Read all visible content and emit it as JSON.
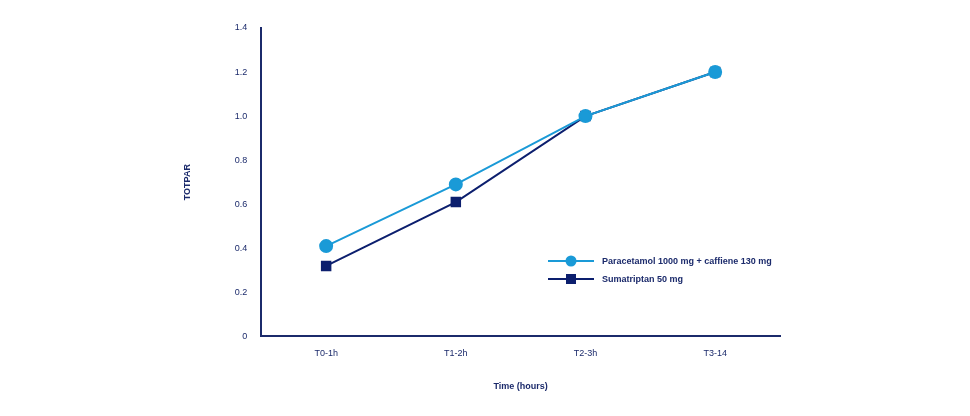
{
  "chart_data": {
    "type": "line",
    "x_label": "Time (hours)",
    "y_label": "TOTPAR",
    "categories": [
      "T0-1h",
      "T1-2h",
      "T2-3h",
      "T3-14"
    ],
    "series": [
      {
        "name": "Paracetamol 1000 mg + caffiene 130 mg",
        "color": "#1a9ad7",
        "marker": "circle",
        "line_style": "solid",
        "values": [
          0.41,
          0.69,
          1.0,
          1.2
        ]
      },
      {
        "name": "Sumatriptan 50 mg",
        "color": "#0c1f6e",
        "marker": "square",
        "line_style": "solid",
        "values": [
          0.32,
          0.61,
          1.0,
          1.2
        ]
      }
    ],
    "ylim": [
      0,
      1.4
    ],
    "yticks": [
      0,
      0.2,
      0.4,
      0.6,
      0.8,
      {
        "value": 1,
        "label": "1.0"
      },
      1.2,
      1.4
    ],
    "grid": false,
    "legend": "lower right"
  }
}
